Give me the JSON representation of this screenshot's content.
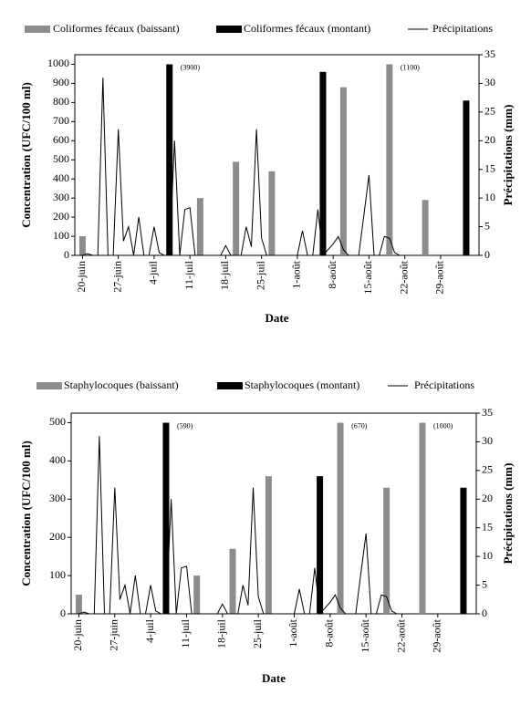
{
  "chart_data": [
    {
      "type": "bar",
      "categories": [
        null,
        "20-juin",
        null,
        null,
        null,
        null,
        null,
        null,
        "27-juin",
        null,
        null,
        null,
        null,
        null,
        null,
        "4-juil",
        null,
        null,
        null,
        null,
        null,
        null,
        "11-juil",
        null,
        null,
        null,
        null,
        null,
        null,
        "18-juil",
        null,
        null,
        null,
        null,
        null,
        null,
        "25-juil",
        null,
        null,
        null,
        null,
        null,
        null,
        "1-août",
        null,
        null,
        null,
        null,
        null,
        null,
        "8-août",
        null,
        null,
        null,
        null,
        null,
        null,
        "15-août",
        null,
        null,
        null,
        null,
        null,
        null,
        "22-août",
        null,
        null,
        null,
        null,
        null,
        null,
        "29-août",
        null,
        null,
        null,
        null,
        null,
        null,
        null
      ],
      "series": [
        {
          "name": "Coliformes fécaux (baissant)",
          "type": "bar",
          "color": "#8c8c8c",
          "values": [
            null,
            100,
            null,
            null,
            null,
            null,
            null,
            null,
            null,
            null,
            null,
            null,
            null,
            null,
            null,
            null,
            null,
            null,
            null,
            null,
            null,
            null,
            null,
            null,
            300,
            null,
            null,
            null,
            null,
            null,
            null,
            490,
            null,
            null,
            null,
            null,
            null,
            null,
            440,
            null,
            null,
            null,
            null,
            null,
            null,
            null,
            null,
            null,
            null,
            null,
            null,
            null,
            880,
            null,
            null,
            null,
            null,
            null,
            null,
            null,
            null,
            1100,
            null,
            null,
            null,
            null,
            null,
            null,
            290,
            null,
            null,
            null,
            null,
            null,
            null,
            null,
            null,
            null,
            null
          ],
          "value_labels": [
            null,
            null,
            null,
            null,
            null,
            null,
            null,
            null,
            null,
            null,
            null,
            null,
            null,
            null,
            null,
            null,
            null,
            null,
            null,
            null,
            null,
            null,
            null,
            null,
            null,
            null,
            null,
            null,
            null,
            null,
            null,
            null,
            null,
            null,
            null,
            null,
            null,
            null,
            null,
            null,
            null,
            null,
            null,
            null,
            null,
            null,
            null,
            null,
            null,
            null,
            null,
            null,
            null,
            null,
            null,
            null,
            null,
            null,
            null,
            null,
            null,
            "(1100)",
            null,
            null,
            null,
            null,
            null,
            null,
            null,
            null,
            null,
            null,
            null,
            null,
            null,
            null,
            null,
            null,
            null
          ]
        },
        {
          "name": "Coliformes fécaux (montant)",
          "type": "bar",
          "color": "#000000",
          "values": [
            null,
            null,
            null,
            null,
            null,
            null,
            null,
            null,
            null,
            null,
            null,
            null,
            null,
            null,
            null,
            null,
            null,
            null,
            3900,
            null,
            null,
            null,
            null,
            null,
            null,
            null,
            null,
            null,
            null,
            null,
            null,
            null,
            null,
            null,
            null,
            null,
            null,
            null,
            null,
            null,
            null,
            null,
            null,
            null,
            null,
            null,
            null,
            null,
            960,
            null,
            null,
            null,
            null,
            null,
            null,
            null,
            null,
            null,
            null,
            null,
            null,
            null,
            null,
            null,
            null,
            null,
            null,
            null,
            null,
            null,
            null,
            null,
            null,
            null,
            null,
            null,
            810,
            null,
            null
          ],
          "value_labels": [
            null,
            null,
            null,
            null,
            null,
            null,
            null,
            null,
            null,
            null,
            null,
            null,
            null,
            null,
            null,
            null,
            null,
            null,
            "(3900)",
            null,
            null,
            null,
            null,
            null,
            null,
            null,
            null,
            null,
            null,
            null,
            null,
            null,
            null,
            null,
            null,
            null,
            null,
            null,
            null,
            null,
            null,
            null,
            null,
            null,
            null,
            null,
            null,
            null,
            null,
            null,
            null,
            null,
            null,
            null,
            null,
            null,
            null,
            null,
            null,
            null,
            null,
            null,
            null,
            null,
            null,
            null,
            null,
            null,
            null,
            null,
            null,
            null,
            null,
            null,
            null,
            null,
            null,
            null,
            null
          ]
        },
        {
          "name": "Précipitations",
          "type": "line",
          "axis": "y2",
          "color": "#000000",
          "values": [
            0,
            0,
            0.3,
            0,
            0,
            31,
            0,
            0,
            22,
            2.5,
            5,
            0,
            6.7,
            0,
            0,
            5,
            0.5,
            0,
            0,
            20,
            0,
            8,
            8.3,
            0,
            0,
            0,
            0,
            0,
            0,
            1.7,
            0,
            0,
            0,
            5,
            1.5,
            22,
            3,
            0,
            0,
            0,
            0,
            0,
            0,
            0,
            4.3,
            0,
            0,
            8,
            0,
            1,
            2,
            3.3,
            1,
            0,
            0,
            0,
            7,
            14,
            0,
            0,
            3.3,
            3,
            0.5,
            0,
            null,
            null,
            null,
            null,
            null,
            null,
            null,
            null,
            null,
            null,
            null,
            null,
            null,
            null,
            null
          ]
        }
      ],
      "ylim": [
        0,
        1050
      ],
      "yticks": [
        0,
        100,
        200,
        300,
        400,
        500,
        600,
        700,
        800,
        900,
        1000
      ],
      "y2lim": [
        0,
        35
      ],
      "y2ticks": [
        0,
        5,
        10,
        15,
        20,
        25,
        30,
        35
      ],
      "ylabel": "Concentration (UFC/100 ml)",
      "y2label": "Précipitations (mm)",
      "xlabel": "Date",
      "legend": "top"
    },
    {
      "type": "bar",
      "categories": [
        null,
        "20-juin",
        null,
        null,
        null,
        null,
        null,
        null,
        "27-juin",
        null,
        null,
        null,
        null,
        null,
        null,
        "4-juil",
        null,
        null,
        null,
        null,
        null,
        null,
        "11-juil",
        null,
        null,
        null,
        null,
        null,
        null,
        "18-juil",
        null,
        null,
        null,
        null,
        null,
        null,
        "25-juil",
        null,
        null,
        null,
        null,
        null,
        null,
        "1-août",
        null,
        null,
        null,
        null,
        null,
        null,
        "8-août",
        null,
        null,
        null,
        null,
        null,
        null,
        "15-août",
        null,
        null,
        null,
        null,
        null,
        null,
        "22-août",
        null,
        null,
        null,
        null,
        null,
        null,
        "29-août",
        null,
        null,
        null,
        null,
        null,
        null,
        null
      ],
      "series": [
        {
          "name": "Staphylocoques (baissant)",
          "type": "bar",
          "color": "#8c8c8c",
          "values": [
            null,
            50,
            null,
            null,
            null,
            null,
            null,
            null,
            null,
            null,
            null,
            null,
            null,
            null,
            null,
            null,
            null,
            null,
            null,
            null,
            null,
            null,
            null,
            null,
            100,
            null,
            null,
            null,
            null,
            null,
            null,
            170,
            null,
            null,
            null,
            null,
            null,
            null,
            360,
            null,
            null,
            null,
            null,
            null,
            null,
            null,
            null,
            null,
            null,
            null,
            null,
            null,
            670,
            null,
            null,
            null,
            null,
            null,
            null,
            null,
            null,
            330,
            null,
            null,
            null,
            null,
            null,
            null,
            1000,
            null,
            null,
            null,
            null,
            null,
            null,
            null,
            null,
            null,
            null
          ],
          "value_labels": [
            null,
            null,
            null,
            null,
            null,
            null,
            null,
            null,
            null,
            null,
            null,
            null,
            null,
            null,
            null,
            null,
            null,
            null,
            null,
            null,
            null,
            null,
            null,
            null,
            null,
            null,
            null,
            null,
            null,
            null,
            null,
            null,
            null,
            null,
            null,
            null,
            null,
            null,
            null,
            null,
            null,
            null,
            null,
            null,
            null,
            null,
            null,
            null,
            null,
            null,
            null,
            null,
            "(670)",
            null,
            null,
            null,
            null,
            null,
            null,
            null,
            null,
            null,
            null,
            null,
            null,
            null,
            null,
            null,
            "(1000)",
            null,
            null,
            null,
            null,
            null,
            null,
            null,
            null,
            null,
            null
          ]
        },
        {
          "name": "Staphylocoques (montant)",
          "type": "bar",
          "color": "#000000",
          "values": [
            null,
            null,
            null,
            null,
            null,
            null,
            null,
            null,
            null,
            null,
            null,
            null,
            null,
            null,
            null,
            null,
            null,
            null,
            590,
            null,
            null,
            null,
            null,
            null,
            null,
            null,
            null,
            null,
            null,
            null,
            null,
            null,
            null,
            null,
            null,
            null,
            null,
            null,
            null,
            null,
            null,
            null,
            null,
            null,
            null,
            null,
            null,
            null,
            360,
            null,
            null,
            null,
            null,
            null,
            null,
            null,
            null,
            null,
            null,
            null,
            null,
            null,
            null,
            null,
            null,
            null,
            null,
            null,
            null,
            null,
            null,
            null,
            null,
            null,
            null,
            null,
            330,
            null,
            null
          ],
          "value_labels": [
            null,
            null,
            null,
            null,
            null,
            null,
            null,
            null,
            null,
            null,
            null,
            null,
            null,
            null,
            null,
            null,
            null,
            null,
            "(590)",
            null,
            null,
            null,
            null,
            null,
            null,
            null,
            null,
            null,
            null,
            null,
            null,
            null,
            null,
            null,
            null,
            null,
            null,
            null,
            null,
            null,
            null,
            null,
            null,
            null,
            null,
            null,
            null,
            null,
            null,
            null,
            null,
            null,
            null,
            null,
            null,
            null,
            null,
            null,
            null,
            null,
            null,
            null,
            null,
            null,
            null,
            null,
            null,
            null,
            null,
            null,
            null,
            null,
            null,
            null,
            null,
            null,
            null,
            null,
            null
          ]
        },
        {
          "name": "Précipitations",
          "type": "line",
          "axis": "y2",
          "color": "#000000",
          "values": [
            0,
            0,
            0.3,
            0,
            0,
            31,
            0,
            0,
            22,
            2.5,
            5,
            0,
            6.7,
            0,
            0,
            5,
            0.5,
            0,
            0,
            20,
            0,
            8,
            8.3,
            0,
            0,
            0,
            0,
            0,
            0,
            1.7,
            0,
            0,
            0,
            5,
            1.5,
            22,
            3,
            0,
            0,
            0,
            0,
            0,
            0,
            0,
            4.3,
            0,
            0,
            8,
            0,
            1,
            2,
            3.3,
            1,
            0,
            0,
            0,
            7,
            14,
            0,
            0,
            3.3,
            3,
            0.5,
            0,
            null,
            null,
            null,
            null,
            null,
            null,
            null,
            null,
            null,
            null,
            null,
            null,
            null,
            null,
            null
          ]
        }
      ],
      "ylim": [
        0,
        525
      ],
      "yticks": [
        0,
        100,
        200,
        300,
        400,
        500
      ],
      "y2lim": [
        0,
        35
      ],
      "y2ticks": [
        0,
        5,
        10,
        15,
        20,
        25,
        30,
        35
      ],
      "ylabel": "Concentration (UFC/100 ml)",
      "y2label": "Précipitations (mm)",
      "xlabel": "Date",
      "legend": "top"
    }
  ]
}
